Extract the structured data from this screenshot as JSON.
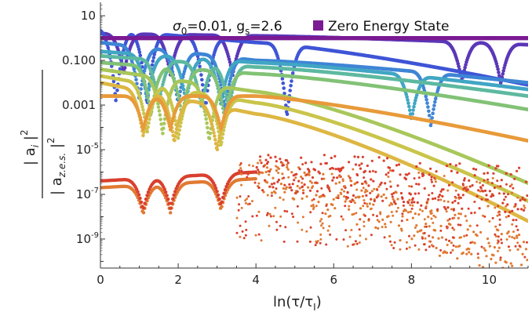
{
  "chart_data": {
    "type": "scatter",
    "title": "σ₀=0.01, g_s=2.6",
    "title_parts": {
      "sigma": "σ",
      "sigma_sub": "0",
      "sigma_val": "=0.01, g",
      "g_sub": "s",
      "g_val": "=2.6"
    },
    "xlabel": "ln(τ/τ_I)",
    "xlabel_parts": {
      "pre": "ln(τ/τ",
      "sub": "I",
      "post": ")"
    },
    "ylabel": "|a_i|² / |a_z.e.s.|²",
    "ylabel_parts": {
      "num": "| a",
      "num_sub": "i",
      "num_sup": "2",
      "den": "| a",
      "den_sub": "z.e.s.",
      "den_sup": "2"
    },
    "xlim": [
      0,
      11
    ],
    "ylim_log10": [
      -10.3,
      1.6
    ],
    "yscale": "log",
    "x_ticks": [
      0,
      2,
      4,
      6,
      8,
      10
    ],
    "x_tick_labels": [
      "0",
      "2",
      "4",
      "6",
      "8",
      "10"
    ],
    "y_ticks": [
      {
        "exp": 1,
        "label": "10"
      },
      {
        "exp": -1,
        "label": "0.100"
      },
      {
        "exp": -3,
        "label": "0.001"
      },
      {
        "exp": -5,
        "label": "10",
        "sup": "-5"
      },
      {
        "exp": -7,
        "label": "10",
        "sup": "-7"
      },
      {
        "exp": -9,
        "label": "10",
        "sup": "-9"
      }
    ],
    "legend": {
      "position": "top-right",
      "label": "Zero Energy State",
      "color": "#7b1a93"
    },
    "zero_energy_state": {
      "log10_value": 0,
      "color": "#7b1a93"
    },
    "grid": false,
    "series": [
      {
        "color": "#5b37b8",
        "start": 0.2,
        "end": -0.3,
        "dips": [
          0.6,
          1.8,
          3.4,
          9.3,
          10.3
        ],
        "dip_depth": 1.8,
        "mid": 0.1
      },
      {
        "color": "#3f55d6",
        "start": 0.4,
        "end": -2.1,
        "dips": [
          0.4,
          1.2,
          2.7,
          4.8
        ],
        "dip_depth": 3.2,
        "mid": -0.2
      },
      {
        "color": "#3f85d6",
        "start": -0.2,
        "end": -2.0,
        "dips": [
          1.0,
          2.0,
          3.2,
          8.5
        ],
        "dip_depth": 2.4,
        "mid": -1.0
      },
      {
        "color": "#41a6c4",
        "start": -0.6,
        "end": -2.3,
        "dips": [
          1.2,
          2.2,
          3.1,
          8.0
        ],
        "dip_depth": 2.0,
        "mid": -1.1
      },
      {
        "color": "#5db9a0",
        "start": -0.8,
        "end": -2.6,
        "dips": [
          1.5,
          2.6,
          3.3
        ],
        "dip_depth": 2.0,
        "mid": -1.3
      },
      {
        "color": "#82c276",
        "start": -1.1,
        "end": -3.2,
        "dips": [
          1.3,
          2.1,
          3.2
        ],
        "dip_depth": 2.2,
        "mid": -1.6
      },
      {
        "color": "#a8c75b",
        "start": -1.4,
        "end": -6.5,
        "dips": [
          1.6,
          2.8
        ],
        "dip_depth": 2.5,
        "mid": -2.4
      },
      {
        "color": "#c9c54b",
        "start": -1.7,
        "end": -7.3,
        "dips": [
          1.2,
          2.0,
          3.1
        ],
        "dip_depth": 2.2,
        "mid": -2.9
      },
      {
        "color": "#ddb743",
        "start": -2.0,
        "end": -8.2,
        "dips": [
          1.1,
          1.9,
          3.0
        ],
        "dip_depth": 2.0,
        "mid": -3.4
      },
      {
        "color": "#e89a3a",
        "start": -2.6,
        "end": -4.6,
        "dips": [
          1.1,
          1.8,
          3.1
        ],
        "dip_depth": 1.5,
        "mid": -2.6
      },
      {
        "color": "#e07a33",
        "start": -6.7,
        "end": -10.2,
        "dips": [
          1.1,
          1.8,
          3.1
        ],
        "dip_depth": 1.3,
        "mid": -6.3
      },
      {
        "color": "#d9402e",
        "start": -6.4,
        "end": -7.0,
        "dips": [
          1.1,
          1.8,
          3.1
        ],
        "dip_depth": 1.4,
        "mid": -6.0
      }
    ]
  }
}
